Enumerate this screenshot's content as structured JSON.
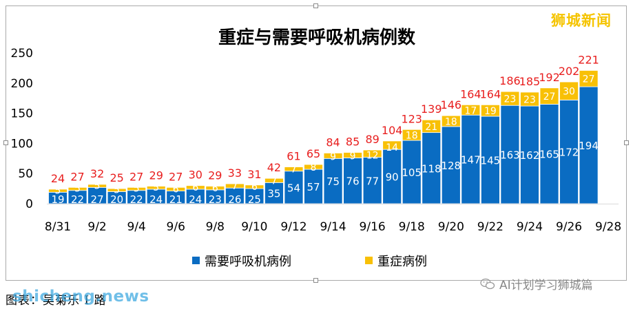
{
  "brand": {
    "name": "狮城新闻"
  },
  "caption": {
    "text": "图表：吴菊乐 I 路"
  },
  "watermark": {
    "site": "shicheng.news",
    "wechat": "AI计划学习狮城篇",
    "icon": "wechat-icon"
  },
  "colors": {
    "ventilator": "#0a6cc2",
    "critical": "#f8c006",
    "total_label": "#e81e1e",
    "inner_label": "#ffffff",
    "axis_text": "#000000"
  },
  "chart_data": {
    "type": "bar",
    "stacked": true,
    "title": "重症与需要呼吸机病例数",
    "xlabel": "",
    "ylabel": "",
    "ylim": [
      0,
      250
    ],
    "yticks": [
      0,
      50,
      100,
      150,
      200,
      250
    ],
    "grid": false,
    "legend": "bottom-center",
    "x_tick_labels": [
      "8/31",
      "9/2",
      "9/4",
      "9/6",
      "9/8",
      "9/10",
      "9/12",
      "9/14",
      "9/16",
      "9/18",
      "9/20",
      "9/22",
      "9/24",
      "9/26",
      "9/28"
    ],
    "categories": [
      "8/31",
      "9/1",
      "9/2",
      "9/3",
      "9/4",
      "9/5",
      "9/6",
      "9/7",
      "9/8",
      "9/9",
      "9/10",
      "9/11",
      "9/12",
      "9/13",
      "9/14",
      "9/15",
      "9/16",
      "9/17",
      "9/18",
      "9/19",
      "9/20",
      "9/21",
      "9/22",
      "9/23",
      "9/24",
      "9/25",
      "9/26",
      "9/27"
    ],
    "series": [
      {
        "name": "需要呼吸机病例",
        "values": [
          19,
          22,
          27,
          20,
          22,
          24,
          21,
          24,
          23,
          26,
          25,
          35,
          54,
          57,
          75,
          76,
          77,
          90,
          105,
          118,
          128,
          147,
          145,
          163,
          162,
          165,
          172,
          194
        ]
      },
      {
        "name": "重症病例",
        "values": [
          5,
          5,
          5,
          5,
          5,
          5,
          6,
          6,
          6,
          7,
          6,
          7,
          7,
          8,
          9,
          9,
          12,
          14,
          18,
          21,
          18,
          17,
          19,
          23,
          23,
          27,
          30,
          27
        ]
      }
    ],
    "totals": [
      24,
      27,
      32,
      25,
      27,
      29,
      27,
      30,
      29,
      33,
      31,
      42,
      61,
      65,
      84,
      85,
      89,
      104,
      123,
      139,
      146,
      164,
      164,
      186,
      185,
      192,
      202,
      221
    ]
  }
}
